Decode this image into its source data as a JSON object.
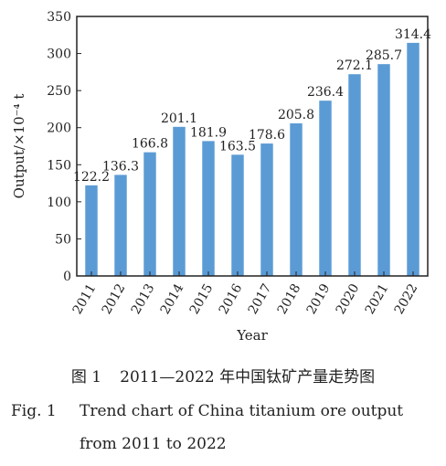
{
  "chart_data": {
    "type": "bar",
    "categories": [
      "2011",
      "2012",
      "2013",
      "2014",
      "2015",
      "2016",
      "2017",
      "2018",
      "2019",
      "2020",
      "2021",
      "2022"
    ],
    "values": [
      122.2,
      136.3,
      166.8,
      201.1,
      181.9,
      163.5,
      178.6,
      205.8,
      236.4,
      272.1,
      285.7,
      314.4
    ],
    "value_labels": [
      "122.2",
      "136.3",
      "166.8",
      "201.1",
      "181.9",
      "163.5",
      "178.6",
      "205.8",
      "236.4",
      "272.1",
      "285.7",
      "314.4"
    ],
    "xlabel": "Year",
    "ylabel": "Output/×10⁻⁴ t",
    "ylim": [
      0,
      350
    ],
    "yticks": [
      0,
      50,
      100,
      150,
      200,
      250,
      300,
      350
    ],
    "bar_color": "#5b9bd5",
    "grid": false
  },
  "captions": {
    "cn_number": "图 1",
    "cn_text": "2011—2022 年中国钛矿产量走势图",
    "en_number": "Fig. 1",
    "en_line1": "Trend chart of China titanium ore output",
    "en_line2": "from 2011 to 2022"
  }
}
